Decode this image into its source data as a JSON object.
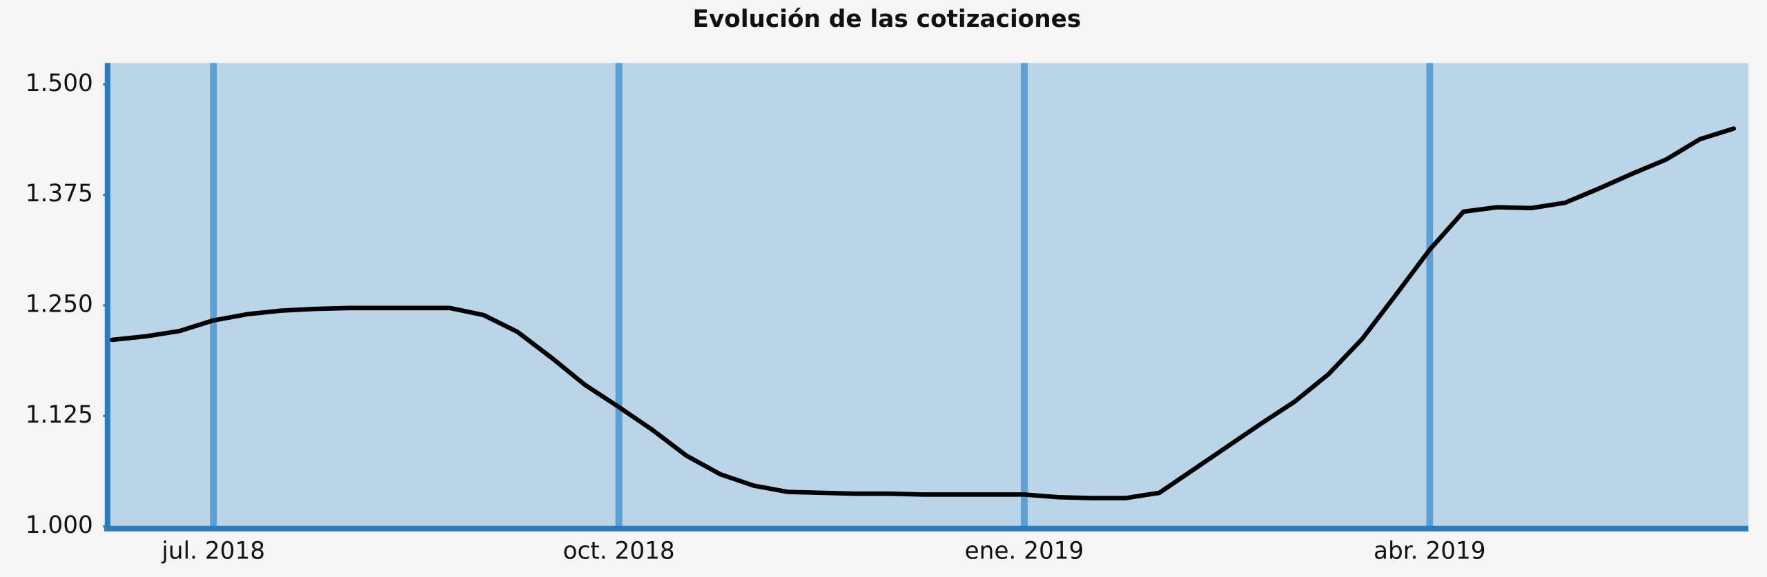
{
  "chart_data": {
    "type": "line",
    "title": "Evolución de las cotizaciones",
    "categories": [
      null,
      null,
      null,
      "jul. 2018",
      null,
      null,
      null,
      null,
      null,
      null,
      null,
      null,
      null,
      null,
      null,
      "oct. 2018",
      null,
      null,
      null,
      null,
      null,
      null,
      null,
      null,
      null,
      null,
      null,
      "ene. 2019",
      null,
      null,
      null,
      null,
      null,
      null,
      null,
      null,
      null,
      null,
      null,
      "abr. 2019",
      null,
      null,
      null,
      null,
      null,
      null,
      null,
      null,
      null
    ],
    "values": [
      1211,
      1215,
      1221,
      1233,
      1240,
      1244,
      1246,
      1247,
      1247,
      1247,
      1247,
      1239,
      1220,
      1191,
      1160,
      1135,
      1109,
      1080,
      1059,
      1046,
      1039,
      1038,
      1037,
      1037,
      1036,
      1036,
      1036,
      1036,
      1033,
      1032,
      1032,
      1038,
      1064,
      1090,
      1116,
      1141,
      1172,
      1212,
      1262,
      1313,
      1356,
      1361,
      1360,
      1366,
      1382,
      1399,
      1415,
      1438,
      1450
    ],
    "color": "#000000",
    "ylim": [
      1000,
      1500
    ],
    "yticks": [
      {
        "value": 1000,
        "label": "1.000"
      },
      {
        "value": 1125,
        "label": "1.125"
      },
      {
        "value": 1250,
        "label": "1.250"
      },
      {
        "value": 1375,
        "label": "1.375"
      },
      {
        "value": 1500,
        "label": "1.500"
      }
    ],
    "plot_background": "#bad5e8",
    "category_grid_color": "#5ba0d0",
    "axis_color": "#2a7bbf"
  }
}
